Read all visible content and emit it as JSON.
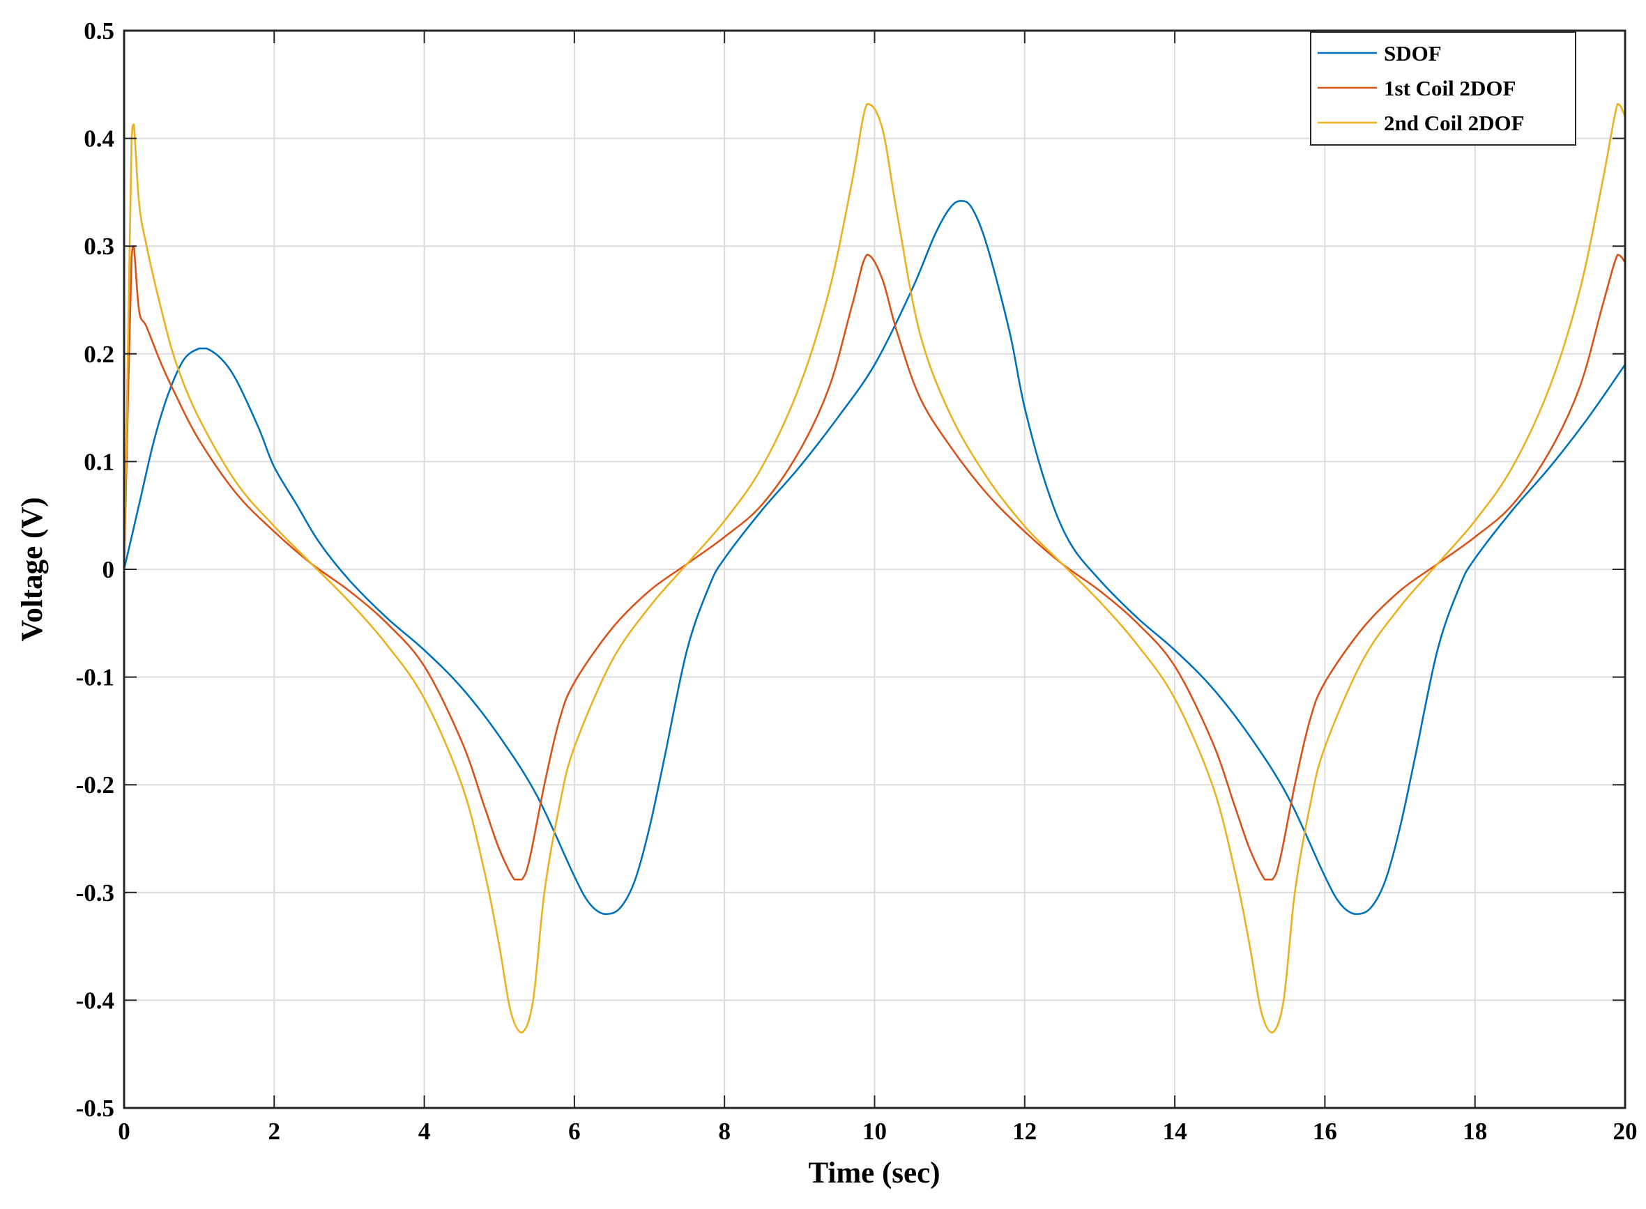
{
  "chart_data": {
    "type": "line",
    "xlabel": "Time (sec)",
    "ylabel": "Voltage (V)",
    "xlim": [
      0,
      20
    ],
    "ylim": [
      -0.5,
      0.5
    ],
    "xticks": [
      "0",
      "2",
      "4",
      "6",
      "8",
      "10",
      "12",
      "14",
      "16",
      "18",
      "20"
    ],
    "yticks": [
      "-0.5",
      "-0.4",
      "-0.3",
      "-0.2",
      "-0.1",
      "0",
      "0.1",
      "0.2",
      "0.3",
      "0.4",
      "0.5"
    ],
    "grid": true,
    "legend_position": "top-right",
    "series": [
      {
        "name": "SDOF",
        "color": "#0072BD",
        "x": [
          0,
          0.2,
          0.4,
          0.6,
          0.8,
          1.0,
          1.1,
          1.3,
          1.5,
          1.8,
          2.0,
          2.3,
          2.6,
          3.0,
          3.5,
          4.0,
          4.5,
          5.0,
          5.5,
          6.0,
          6.2,
          6.4,
          6.6,
          6.8,
          7.0,
          7.2,
          7.5,
          7.8,
          8.0,
          8.5,
          9.0,
          9.5,
          10.0,
          10.5,
          10.8,
          11.0,
          11.15,
          11.3,
          11.5,
          11.8,
          12.0,
          12.3,
          12.6,
          13.0,
          13.5,
          14.0,
          14.5,
          15.0,
          15.5,
          16.0,
          16.2,
          16.4,
          16.6,
          16.8,
          17.0,
          17.2,
          17.5,
          17.8,
          18.0,
          18.5,
          19.0,
          19.5,
          20.0
        ],
        "values": [
          0,
          0.06,
          0.12,
          0.165,
          0.195,
          0.205,
          0.205,
          0.195,
          0.175,
          0.13,
          0.095,
          0.06,
          0.025,
          -0.01,
          -0.045,
          -0.075,
          -0.11,
          -0.155,
          -0.21,
          -0.285,
          -0.31,
          -0.32,
          -0.315,
          -0.29,
          -0.24,
          -0.175,
          -0.075,
          -0.015,
          0.01,
          0.055,
          0.095,
          0.14,
          0.19,
          0.26,
          0.31,
          0.335,
          0.342,
          0.335,
          0.3,
          0.22,
          0.15,
          0.075,
          0.025,
          -0.01,
          -0.045,
          -0.075,
          -0.11,
          -0.155,
          -0.21,
          -0.285,
          -0.31,
          -0.32,
          -0.315,
          -0.29,
          -0.24,
          -0.175,
          -0.075,
          -0.015,
          0.01,
          0.055,
          0.095,
          0.14,
          0.19
        ]
      },
      {
        "name": "1st Coil 2DOF",
        "color": "#D95319",
        "x": [
          0,
          0.05,
          0.1,
          0.13,
          0.2,
          0.3,
          0.5,
          0.7,
          1.0,
          1.5,
          2.0,
          2.5,
          3.0,
          3.5,
          4.0,
          4.5,
          4.8,
          5.0,
          5.2,
          5.3,
          5.4,
          5.6,
          5.8,
          6.0,
          6.5,
          7.0,
          7.5,
          8.0,
          8.5,
          9.0,
          9.4,
          9.7,
          9.9,
          10.1,
          10.3,
          10.6,
          11.0,
          11.5,
          12.0,
          12.5,
          13.0,
          13.5,
          14.0,
          14.5,
          14.8,
          15.0,
          15.2,
          15.3,
          15.4,
          15.6,
          15.8,
          16.0,
          16.5,
          17.0,
          17.5,
          18.0,
          18.5,
          19.0,
          19.4,
          19.7,
          19.9,
          20.0
        ],
        "values": [
          0,
          0.15,
          0.29,
          0.3,
          0.24,
          0.225,
          0.19,
          0.16,
          0.12,
          0.07,
          0.035,
          0.005,
          -0.02,
          -0.05,
          -0.09,
          -0.16,
          -0.22,
          -0.26,
          -0.288,
          -0.288,
          -0.27,
          -0.2,
          -0.14,
          -0.105,
          -0.055,
          -0.02,
          0.005,
          0.03,
          0.06,
          0.11,
          0.17,
          0.245,
          0.292,
          0.27,
          0.22,
          0.16,
          0.115,
          0.07,
          0.035,
          0.005,
          -0.02,
          -0.05,
          -0.09,
          -0.16,
          -0.22,
          -0.26,
          -0.288,
          -0.288,
          -0.27,
          -0.2,
          -0.14,
          -0.105,
          -0.055,
          -0.02,
          0.005,
          0.03,
          0.06,
          0.11,
          0.17,
          0.245,
          0.292,
          0.285
        ]
      },
      {
        "name": "2nd Coil 2DOF",
        "color": "#EDB120",
        "x": [
          0,
          0.05,
          0.1,
          0.13,
          0.2,
          0.3,
          0.5,
          0.7,
          1.0,
          1.5,
          2.0,
          2.5,
          3.0,
          3.5,
          4.0,
          4.5,
          4.8,
          5.0,
          5.15,
          5.3,
          5.45,
          5.6,
          5.8,
          6.0,
          6.5,
          7.0,
          7.5,
          8.0,
          8.5,
          9.0,
          9.4,
          9.7,
          9.9,
          10.1,
          10.3,
          10.6,
          11.0,
          11.5,
          12.0,
          12.5,
          13.0,
          13.5,
          14.0,
          14.5,
          14.8,
          15.0,
          15.15,
          15.3,
          15.45,
          15.6,
          15.8,
          16.0,
          16.5,
          17.0,
          17.5,
          18.0,
          18.5,
          19.0,
          19.4,
          19.7,
          19.9,
          20.0
        ],
        "values": [
          0,
          0.2,
          0.4,
          0.413,
          0.34,
          0.3,
          0.24,
          0.19,
          0.14,
          0.08,
          0.04,
          0.005,
          -0.03,
          -0.07,
          -0.12,
          -0.2,
          -0.28,
          -0.35,
          -0.41,
          -0.43,
          -0.4,
          -0.3,
          -0.22,
          -0.165,
          -0.085,
          -0.035,
          0.005,
          0.045,
          0.095,
          0.17,
          0.26,
          0.36,
          0.432,
          0.41,
          0.33,
          0.22,
          0.145,
          0.085,
          0.04,
          0.005,
          -0.03,
          -0.07,
          -0.12,
          -0.2,
          -0.28,
          -0.35,
          -0.41,
          -0.43,
          -0.4,
          -0.3,
          -0.22,
          -0.165,
          -0.085,
          -0.035,
          0.005,
          0.045,
          0.095,
          0.17,
          0.26,
          0.36,
          0.432,
          0.42
        ]
      }
    ]
  }
}
